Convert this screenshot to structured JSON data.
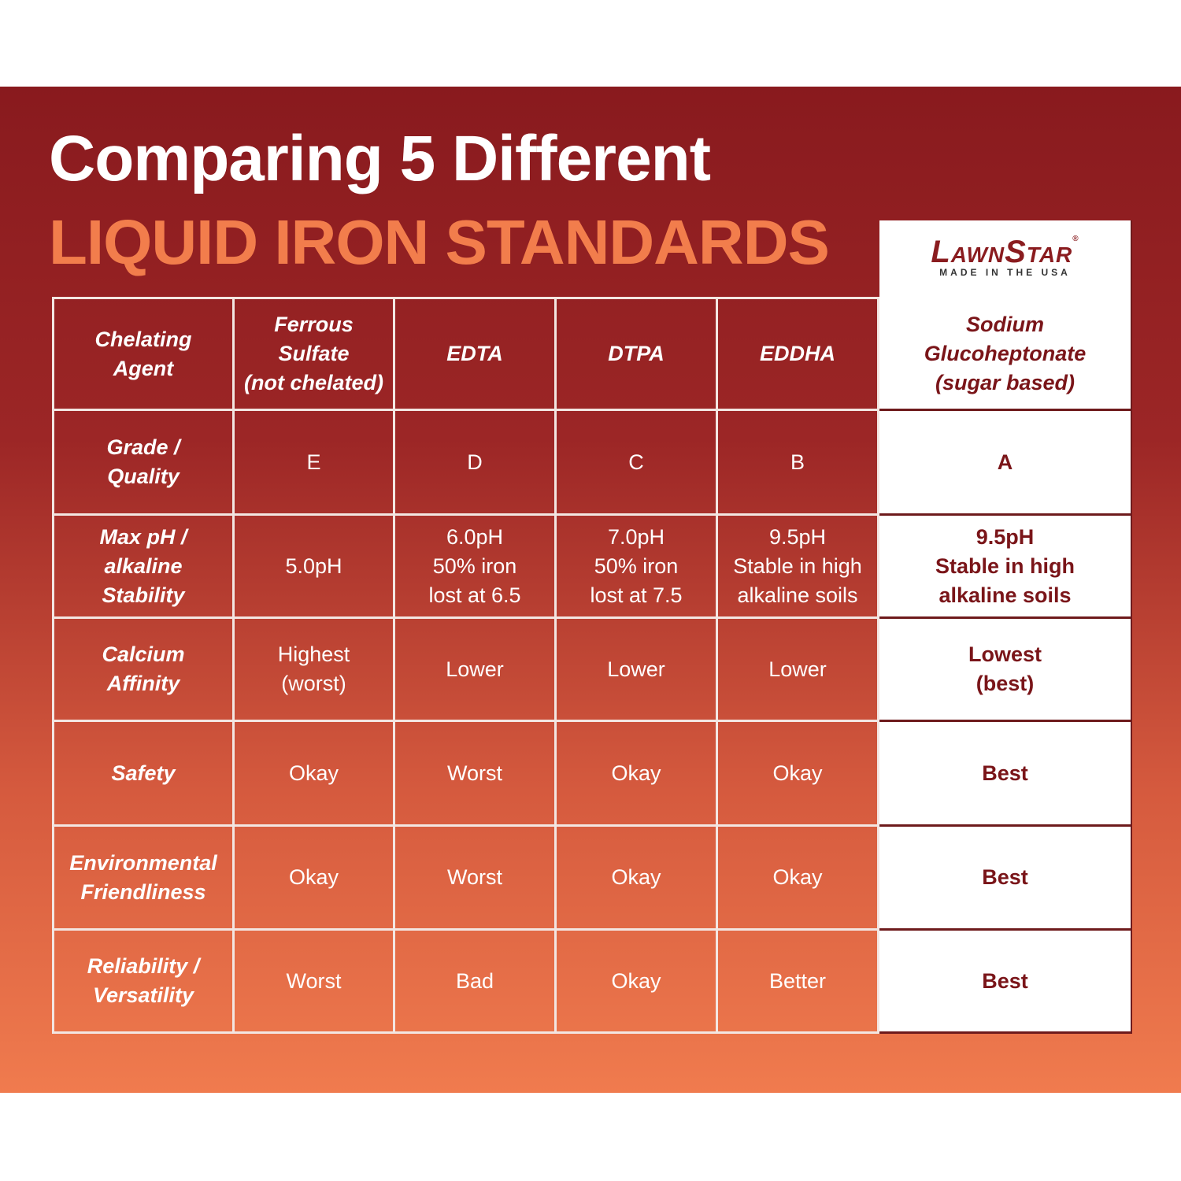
{
  "title": {
    "line1": "Comparing 5 Different",
    "line2": "LIQUID IRON STANDARDS"
  },
  "brand": {
    "name": "LawnStar",
    "mark": "®",
    "tagline": "MADE IN THE USA"
  },
  "table": {
    "header": [
      [
        "Chelating",
        "Agent"
      ],
      [
        "Ferrous",
        "Sulfate",
        "(not chelated)"
      ],
      [
        "EDTA"
      ],
      [
        "DTPA"
      ],
      [
        "EDDHA"
      ],
      [
        "Sodium",
        "Glucoheptonate",
        "(sugar based)"
      ]
    ],
    "rows": [
      [
        [
          "Grade /",
          "Quality"
        ],
        [
          "E"
        ],
        [
          "D"
        ],
        [
          "C"
        ],
        [
          "B"
        ],
        [
          "A"
        ]
      ],
      [
        [
          "Max pH /",
          "alkaline",
          "Stability"
        ],
        [
          "5.0pH"
        ],
        [
          "6.0pH",
          "50% iron",
          "lost at 6.5"
        ],
        [
          "7.0pH",
          "50% iron",
          "lost at 7.5"
        ],
        [
          "9.5pH",
          "Stable in high",
          "alkaline soils"
        ],
        [
          "9.5pH",
          "Stable in high",
          "alkaline soils"
        ]
      ],
      [
        [
          "Calcium",
          "Affinity"
        ],
        [
          "Highest",
          "(worst)"
        ],
        [
          "Lower"
        ],
        [
          "Lower"
        ],
        [
          "Lower"
        ],
        [
          "Lowest",
          "(best)"
        ]
      ],
      [
        [
          "Safety"
        ],
        [
          "Okay"
        ],
        [
          "Worst"
        ],
        [
          "Okay"
        ],
        [
          "Okay"
        ],
        [
          "Best"
        ]
      ],
      [
        [
          "Environmental",
          "Friendliness"
        ],
        [
          "Okay"
        ],
        [
          "Worst"
        ],
        [
          "Okay"
        ],
        [
          "Okay"
        ],
        [
          "Best"
        ]
      ],
      [
        [
          "Reliability /",
          "Versatility"
        ],
        [
          "Worst"
        ],
        [
          "Bad"
        ],
        [
          "Okay"
        ],
        [
          "Better"
        ],
        [
          "Best"
        ]
      ]
    ]
  }
}
